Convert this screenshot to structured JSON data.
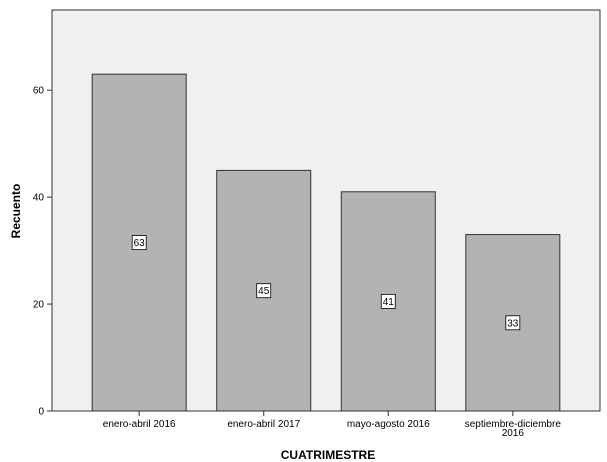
{
  "chart_data": {
    "type": "bar",
    "categories": [
      [
        "enero-abril 2016"
      ],
      [
        "enero-abril 2017"
      ],
      [
        "mayo-agosto 2016"
      ],
      [
        "septiembre-diciembre",
        "2016"
      ]
    ],
    "values": [
      63,
      45,
      41,
      33
    ],
    "xlabel": "CUATRIMESTRE",
    "ylabel": "Recuento",
    "ylim": [
      0,
      75
    ],
    "yticks": [
      0,
      20,
      40,
      60
    ],
    "data_labels": true,
    "grid": false,
    "legend": "none",
    "colors": {
      "plot_background": "#f0f0f0",
      "bar_fill": "#b3b3b3",
      "bar_stroke": "#333333",
      "frame": "#333333",
      "label_box": "#ffffff"
    }
  }
}
